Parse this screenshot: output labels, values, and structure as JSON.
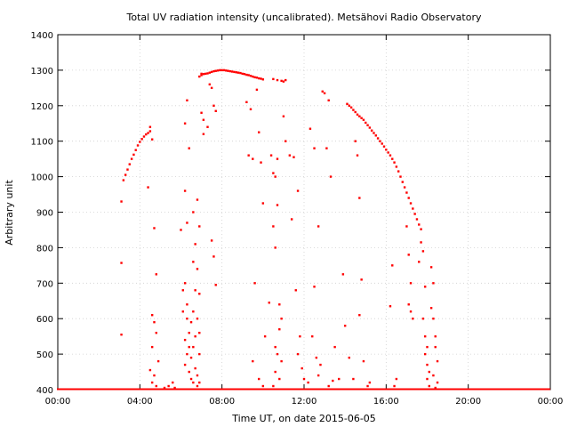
{
  "chart_data": {
    "type": "scatter",
    "title": "Total UV radiation intensity (uncalibrated). Metsähovi Radio Observatory",
    "xlabel": "Time UT, on date 2015-06-05",
    "ylabel": "Arbitrary unit",
    "xlim": [
      "00:00",
      "24:00"
    ],
    "ylim": [
      400,
      1400
    ],
    "x_ticks": [
      "00:00",
      "04:00",
      "08:00",
      "12:00",
      "16:00",
      "20:00",
      "00:00"
    ],
    "y_ticks": [
      400,
      500,
      600,
      700,
      800,
      900,
      1000,
      1100,
      1200,
      1300,
      1400
    ],
    "grid": true,
    "marker_color": "#ff0000",
    "series": [
      {
        "points": [
          [
            "03:12",
            990
          ],
          [
            "03:18",
            1005
          ],
          [
            "03:24",
            1020
          ],
          [
            "03:30",
            1035
          ],
          [
            "03:36",
            1050
          ],
          [
            "03:42",
            1062
          ],
          [
            "03:48",
            1075
          ],
          [
            "03:54",
            1088
          ],
          [
            "04:00",
            1098
          ],
          [
            "04:06",
            1106
          ],
          [
            "04:12",
            1113
          ],
          [
            "04:18",
            1119
          ],
          [
            "04:24",
            1123
          ],
          [
            "04:30",
            1128
          ],
          [
            "06:54",
            1282
          ],
          [
            "07:00",
            1286
          ],
          [
            "07:06",
            1289
          ],
          [
            "07:12",
            1290
          ],
          [
            "07:18",
            1291
          ],
          [
            "07:24",
            1293
          ],
          [
            "07:30",
            1295
          ],
          [
            "07:36",
            1297
          ],
          [
            "07:42",
            1298
          ],
          [
            "07:48",
            1299
          ],
          [
            "07:54",
            1300
          ],
          [
            "08:00",
            1300
          ],
          [
            "08:06",
            1300
          ],
          [
            "08:12",
            1299
          ],
          [
            "08:18",
            1298
          ],
          [
            "08:24",
            1297
          ],
          [
            "08:30",
            1296
          ],
          [
            "08:36",
            1295
          ],
          [
            "08:42",
            1294
          ],
          [
            "08:48",
            1293
          ],
          [
            "08:54",
            1292
          ],
          [
            "09:00",
            1290
          ],
          [
            "09:06",
            1289
          ],
          [
            "09:12",
            1287
          ],
          [
            "09:18",
            1286
          ],
          [
            "09:24",
            1284
          ],
          [
            "09:30",
            1282
          ],
          [
            "09:36",
            1280
          ],
          [
            "09:42",
            1279
          ],
          [
            "09:48",
            1277
          ],
          [
            "09:54",
            1276
          ],
          [
            "10:00",
            1274
          ],
          [
            "10:30",
            1275
          ],
          [
            "10:42",
            1272
          ],
          [
            "10:54",
            1270
          ],
          [
            "11:00",
            1268
          ],
          [
            "11:06",
            1272
          ],
          [
            "12:54",
            1240
          ],
          [
            "13:00",
            1235
          ],
          [
            "14:06",
            1205
          ],
          [
            "14:12",
            1200
          ],
          [
            "14:18",
            1195
          ],
          [
            "14:24",
            1188
          ],
          [
            "14:30",
            1182
          ],
          [
            "14:36",
            1175
          ],
          [
            "14:42",
            1170
          ],
          [
            "14:48",
            1165
          ],
          [
            "14:54",
            1160
          ],
          [
            "15:00",
            1152
          ],
          [
            "15:06",
            1145
          ],
          [
            "15:12",
            1138
          ],
          [
            "15:18",
            1130
          ],
          [
            "15:24",
            1123
          ],
          [
            "15:30",
            1116
          ],
          [
            "15:36",
            1108
          ],
          [
            "15:42",
            1100
          ],
          [
            "15:48",
            1093
          ],
          [
            "15:54",
            1085
          ],
          [
            "16:00",
            1076
          ],
          [
            "16:06",
            1068
          ],
          [
            "16:12",
            1060
          ],
          [
            "16:18",
            1050
          ],
          [
            "16:24",
            1040
          ],
          [
            "16:30",
            1028
          ],
          [
            "16:36",
            1015
          ],
          [
            "16:42",
            1000
          ],
          [
            "16:48",
            985
          ],
          [
            "16:54",
            970
          ],
          [
            "17:00",
            955
          ],
          [
            "17:06",
            940
          ],
          [
            "17:12",
            925
          ],
          [
            "17:18",
            910
          ],
          [
            "17:24",
            895
          ],
          [
            "17:30",
            880
          ],
          [
            "17:36",
            865
          ],
          [
            "17:42",
            852
          ],
          [
            "03:06",
            930
          ],
          [
            "03:06",
            757
          ],
          [
            "03:06",
            555
          ],
          [
            "04:24",
            970
          ],
          [
            "04:30",
            1140
          ],
          [
            "04:36",
            1105
          ],
          [
            "04:42",
            855
          ],
          [
            "04:48",
            725
          ],
          [
            "04:36",
            610
          ],
          [
            "04:42",
            590
          ],
          [
            "04:48",
            560
          ],
          [
            "04:36",
            520
          ],
          [
            "04:54",
            480
          ],
          [
            "04:30",
            455
          ],
          [
            "04:42",
            440
          ],
          [
            "04:36",
            420
          ],
          [
            "04:48",
            410
          ],
          [
            "05:12",
            405
          ],
          [
            "05:24",
            410
          ],
          [
            "05:36",
            420
          ],
          [
            "05:42",
            405
          ],
          [
            "06:00",
            850
          ],
          [
            "06:06",
            680
          ],
          [
            "06:12",
            960
          ],
          [
            "06:18",
            1215
          ],
          [
            "06:12",
            1150
          ],
          [
            "06:24",
            1080
          ],
          [
            "06:18",
            870
          ],
          [
            "06:12",
            700
          ],
          [
            "06:18",
            640
          ],
          [
            "06:06",
            620
          ],
          [
            "06:18",
            600
          ],
          [
            "06:24",
            560
          ],
          [
            "06:12",
            540
          ],
          [
            "06:24",
            520
          ],
          [
            "06:18",
            500
          ],
          [
            "06:12",
            470
          ],
          [
            "06:24",
            450
          ],
          [
            "06:30",
            430
          ],
          [
            "06:36",
            900
          ],
          [
            "06:42",
            810
          ],
          [
            "06:36",
            760
          ],
          [
            "06:42",
            680
          ],
          [
            "06:36",
            620
          ],
          [
            "06:30",
            590
          ],
          [
            "06:42",
            550
          ],
          [
            "06:36",
            520
          ],
          [
            "06:30",
            490
          ],
          [
            "06:42",
            460
          ],
          [
            "06:36",
            420
          ],
          [
            "06:48",
            410
          ],
          [
            "06:48",
            935
          ],
          [
            "06:54",
            860
          ],
          [
            "06:48",
            740
          ],
          [
            "06:54",
            670
          ],
          [
            "06:48",
            600
          ],
          [
            "06:54",
            560
          ],
          [
            "06:54",
            500
          ],
          [
            "06:48",
            440
          ],
          [
            "06:54",
            420
          ],
          [
            "07:00",
            1290
          ],
          [
            "07:00",
            1180
          ],
          [
            "07:06",
            1160
          ],
          [
            "07:06",
            1120
          ],
          [
            "07:24",
            1260
          ],
          [
            "07:30",
            1250
          ],
          [
            "07:36",
            1200
          ],
          [
            "07:42",
            1185
          ],
          [
            "07:18",
            1140
          ],
          [
            "07:30",
            820
          ],
          [
            "07:36",
            775
          ],
          [
            "07:42",
            695
          ],
          [
            "09:12",
            1210
          ],
          [
            "09:24",
            1190
          ],
          [
            "09:18",
            1060
          ],
          [
            "09:30",
            1050
          ],
          [
            "09:42",
            1245
          ],
          [
            "09:48",
            1125
          ],
          [
            "09:54",
            1040
          ],
          [
            "10:00",
            925
          ],
          [
            "09:36",
            700
          ],
          [
            "09:30",
            480
          ],
          [
            "09:48",
            430
          ],
          [
            "10:00",
            410
          ],
          [
            "10:06",
            550
          ],
          [
            "10:18",
            645
          ],
          [
            "10:24",
            1060
          ],
          [
            "10:30",
            1010
          ],
          [
            "10:36",
            1000
          ],
          [
            "10:42",
            1050
          ],
          [
            "10:30",
            860
          ],
          [
            "10:36",
            800
          ],
          [
            "10:42",
            920
          ],
          [
            "10:48",
            640
          ],
          [
            "10:54",
            600
          ],
          [
            "10:48",
            570
          ],
          [
            "10:36",
            520
          ],
          [
            "10:42",
            500
          ],
          [
            "10:54",
            480
          ],
          [
            "10:36",
            450
          ],
          [
            "10:48",
            430
          ],
          [
            "10:30",
            410
          ],
          [
            "11:00",
            1170
          ],
          [
            "11:06",
            1100
          ],
          [
            "11:18",
            1060
          ],
          [
            "11:24",
            880
          ],
          [
            "11:30",
            1055
          ],
          [
            "11:42",
            960
          ],
          [
            "11:36",
            680
          ],
          [
            "11:48",
            550
          ],
          [
            "11:42",
            500
          ],
          [
            "11:54",
            460
          ],
          [
            "12:00",
            430
          ],
          [
            "12:12",
            420
          ],
          [
            "12:18",
            1135
          ],
          [
            "12:30",
            1080
          ],
          [
            "12:42",
            860
          ],
          [
            "12:30",
            690
          ],
          [
            "12:24",
            550
          ],
          [
            "12:36",
            490
          ],
          [
            "12:48",
            470
          ],
          [
            "12:42",
            440
          ],
          [
            "13:12",
            1215
          ],
          [
            "13:06",
            1080
          ],
          [
            "13:18",
            1000
          ],
          [
            "13:30",
            520
          ],
          [
            "13:12",
            410
          ],
          [
            "13:24",
            425
          ],
          [
            "13:42",
            430
          ],
          [
            "13:54",
            725
          ],
          [
            "14:00",
            580
          ],
          [
            "14:12",
            490
          ],
          [
            "14:24",
            430
          ],
          [
            "14:30",
            1100
          ],
          [
            "14:36",
            1060
          ],
          [
            "14:42",
            940
          ],
          [
            "14:48",
            710
          ],
          [
            "14:42",
            610
          ],
          [
            "14:54",
            480
          ],
          [
            "15:06",
            410
          ],
          [
            "15:12",
            420
          ],
          [
            "16:18",
            750
          ],
          [
            "16:12",
            635
          ],
          [
            "16:30",
            430
          ],
          [
            "16:24",
            410
          ],
          [
            "17:00",
            860
          ],
          [
            "17:06",
            780
          ],
          [
            "17:12",
            700
          ],
          [
            "17:06",
            640
          ],
          [
            "17:12",
            620
          ],
          [
            "17:18",
            600
          ],
          [
            "17:42",
            815
          ],
          [
            "17:48",
            790
          ],
          [
            "17:36",
            760
          ],
          [
            "17:54",
            690
          ],
          [
            "17:48",
            600
          ],
          [
            "17:54",
            550
          ],
          [
            "18:00",
            520
          ],
          [
            "17:54",
            500
          ],
          [
            "18:00",
            470
          ],
          [
            "18:06",
            450
          ],
          [
            "18:00",
            430
          ],
          [
            "18:06",
            410
          ],
          [
            "18:12",
            745
          ],
          [
            "18:18",
            700
          ],
          [
            "18:12",
            630
          ],
          [
            "18:18",
            600
          ],
          [
            "18:24",
            550
          ],
          [
            "18:24",
            520
          ],
          [
            "18:30",
            480
          ],
          [
            "18:18",
            440
          ],
          [
            "18:30",
            420
          ],
          [
            "18:24",
            405
          ]
        ]
      }
    ],
    "baseline": {
      "value": 400,
      "from": "00:00",
      "to": "24:00"
    }
  }
}
